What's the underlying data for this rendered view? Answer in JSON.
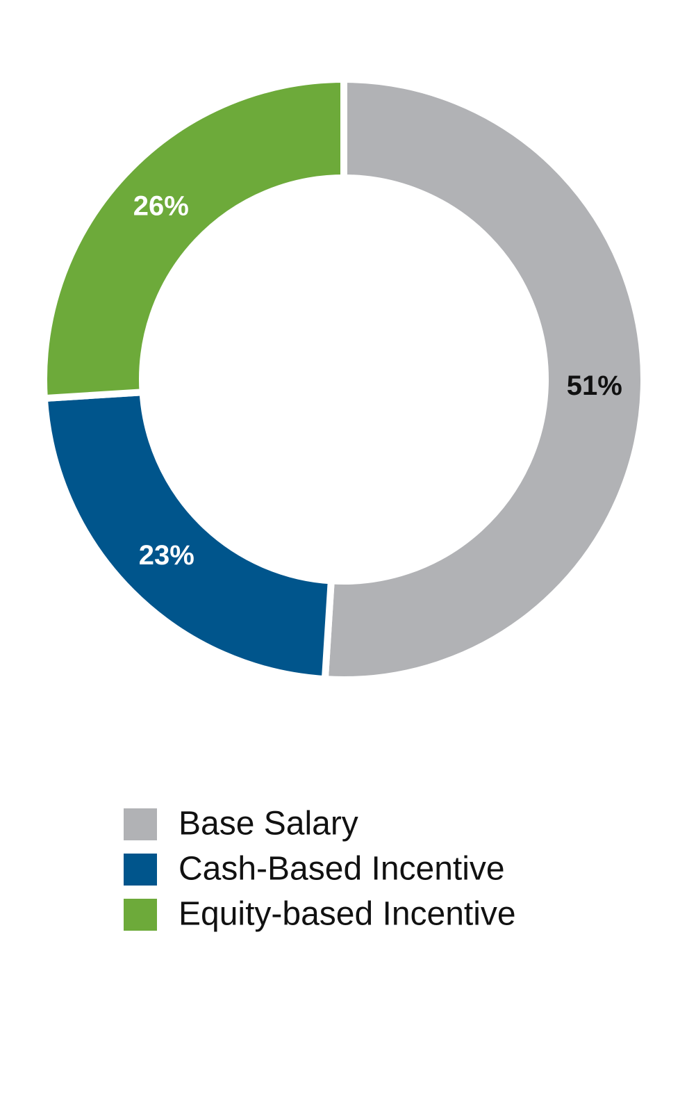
{
  "chart_data": {
    "type": "donut",
    "categories": [
      "Base Salary",
      "Cash-Based Incentive",
      "Equity-based Incentive"
    ],
    "values": [
      51,
      23,
      26
    ],
    "value_labels": [
      "51%",
      "23%",
      "26%"
    ],
    "colors": [
      "#b1b2b5",
      "#00558c",
      "#6daa3a"
    ],
    "legend": "bottom"
  }
}
